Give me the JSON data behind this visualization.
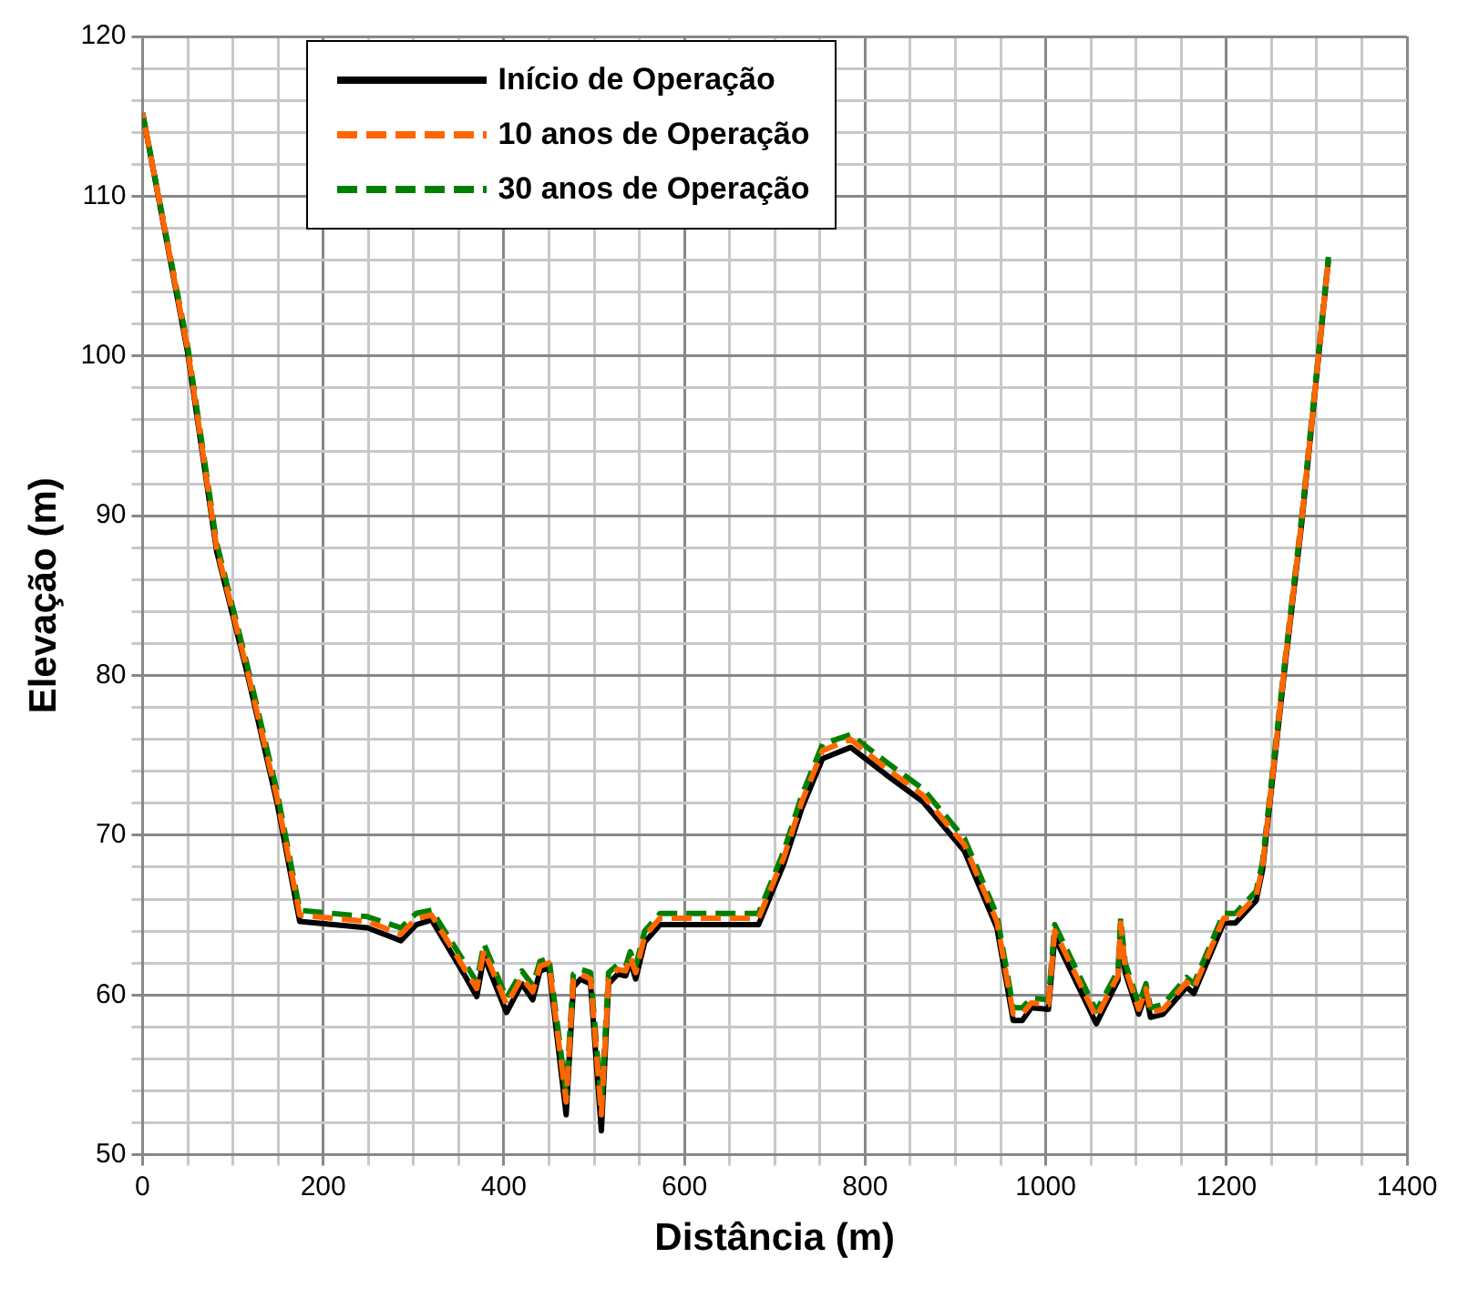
{
  "chart_data": {
    "type": "line",
    "xlabel": "Distância (m)",
    "ylabel": "Elevação (m)",
    "x": [
      0,
      50,
      82,
      116,
      149,
      174,
      249,
      286,
      303,
      320,
      358,
      370,
      378,
      403,
      420,
      432,
      440,
      450,
      469,
      477,
      485,
      496,
      508,
      516,
      526,
      535,
      540,
      546,
      556,
      573,
      682,
      710,
      730,
      753,
      784,
      823,
      864,
      910,
      946,
      964,
      974,
      984,
      1003,
      1010,
      1056,
      1080,
      1083,
      1088,
      1103,
      1111,
      1116,
      1130,
      1156,
      1164,
      1197,
      1210,
      1233,
      1240,
      1264,
      1283,
      1313
    ],
    "series": [
      {
        "name": "Início de Operação",
        "color": "#000000",
        "line_style": "solid",
        "values": [
          115.2,
          100.2,
          87.8,
          80.1,
          72,
          64.6,
          64.2,
          63.4,
          64.4,
          64.7,
          61.1,
          59.9,
          62.4,
          58.9,
          60.7,
          59.7,
          61.5,
          61.7,
          52.5,
          60.5,
          61,
          60.7,
          51.5,
          60.7,
          61.3,
          61.2,
          62.1,
          61,
          63.3,
          64.4,
          64.4,
          68.2,
          71.7,
          74.8,
          75.5,
          73.8,
          72.1,
          69,
          64.2,
          58.4,
          58.4,
          59.2,
          59.1,
          63.6,
          58.2,
          60.9,
          64.2,
          61.4,
          58.8,
          60.1,
          58.6,
          58.8,
          60.5,
          60.1,
          64.5,
          64.5,
          65.9,
          67.8,
          80.1,
          89.3,
          106
        ]
      },
      {
        "name": "10 anos de Operação",
        "color": "#ff6600",
        "line_style": "dashed",
        "values": [
          115.2,
          100.4,
          88,
          80.3,
          72.3,
          65,
          64.6,
          63.8,
          64.8,
          65,
          61.5,
          60.4,
          62.8,
          59.4,
          61.1,
          60.2,
          61.8,
          62,
          53.3,
          60.9,
          61.3,
          61,
          52.5,
          61,
          61.6,
          61.5,
          62.4,
          61.4,
          63.7,
          64.8,
          64.8,
          68.6,
          72.1,
          75.3,
          76,
          74.2,
          72.5,
          69.4,
          64.6,
          58.8,
          58.8,
          59.5,
          59.4,
          64,
          58.6,
          61.2,
          64.5,
          61.7,
          59.1,
          60.4,
          58.9,
          59.1,
          60.8,
          60.4,
          64.8,
          64.8,
          66.2,
          68,
          80.3,
          89.5,
          106
        ]
      },
      {
        "name": "30 anos de Operação",
        "color": "#008000",
        "line_style": "dashed",
        "values": [
          115.2,
          100.6,
          88.3,
          80.6,
          72.7,
          65.3,
          64.9,
          64.2,
          65.1,
          65.3,
          61.9,
          60.8,
          63.2,
          59.8,
          61.5,
          60.6,
          62.1,
          62.3,
          53.8,
          61.3,
          61.6,
          61.4,
          53.2,
          61.4,
          61.9,
          61.8,
          62.7,
          61.8,
          64,
          65.1,
          65.1,
          69,
          72.5,
          75.7,
          76.3,
          74.6,
          72.9,
          69.8,
          65,
          59.2,
          59.2,
          59.8,
          59.7,
          64.4,
          59,
          61.5,
          64.8,
          62,
          59.4,
          60.7,
          59.2,
          59.4,
          61.1,
          60.7,
          65.1,
          65.1,
          66.5,
          68.3,
          80.5,
          89.7,
          106.2
        ]
      }
    ],
    "xlim": [
      0,
      1400
    ],
    "xticks": [
      0,
      {
        "value": 50,
        "label": null
      },
      {
        "value": 100,
        "label": null
      },
      {
        "value": 150,
        "label": null
      },
      200,
      {
        "value": 250,
        "label": null
      },
      {
        "value": 300,
        "label": null
      },
      {
        "value": 350,
        "label": null
      },
      400,
      {
        "value": 450,
        "label": null
      },
      {
        "value": 500,
        "label": null
      },
      {
        "value": 550,
        "label": null
      },
      600,
      {
        "value": 650,
        "label": null
      },
      {
        "value": 700,
        "label": null
      },
      {
        "value": 750,
        "label": null
      },
      800,
      {
        "value": 850,
        "label": null
      },
      {
        "value": 900,
        "label": null
      },
      {
        "value": 950,
        "label": null
      },
      1000,
      {
        "value": 1050,
        "label": null
      },
      {
        "value": 1100,
        "label": null
      },
      {
        "value": 1150,
        "label": null
      },
      1200,
      {
        "value": 1250,
        "label": null
      },
      {
        "value": 1300,
        "label": null
      },
      {
        "value": 1350,
        "label": null
      },
      1400
    ],
    "ylim": [
      50,
      120
    ],
    "yticks": [
      50,
      {
        "value": 52,
        "label": null
      },
      {
        "value": 54,
        "label": null
      },
      {
        "value": 56,
        "label": null
      },
      {
        "value": 58,
        "label": null
      },
      60,
      {
        "value": 62,
        "label": null
      },
      {
        "value": 64,
        "label": null
      },
      {
        "value": 66,
        "label": null
      },
      {
        "value": 68,
        "label": null
      },
      70,
      {
        "value": 72,
        "label": null
      },
      {
        "value": 74,
        "label": null
      },
      {
        "value": 76,
        "label": null
      },
      {
        "value": 78,
        "label": null
      },
      80,
      {
        "value": 82,
        "label": null
      },
      {
        "value": 84,
        "label": null
      },
      {
        "value": 86,
        "label": null
      },
      {
        "value": 88,
        "label": null
      },
      90,
      {
        "value": 92,
        "label": null
      },
      {
        "value": 94,
        "label": null
      },
      {
        "value": 96,
        "label": null
      },
      {
        "value": 98,
        "label": null
      },
      100,
      {
        "value": 102,
        "label": null
      },
      {
        "value": 104,
        "label": null
      },
      {
        "value": 106,
        "label": null
      },
      {
        "value": 108,
        "label": null
      },
      110,
      {
        "value": 112,
        "label": null
      },
      {
        "value": 114,
        "label": null
      },
      {
        "value": 116,
        "label": null
      },
      {
        "value": 118,
        "label": null
      },
      120
    ],
    "grid": true,
    "legend": "top left",
    "marker": "none"
  }
}
